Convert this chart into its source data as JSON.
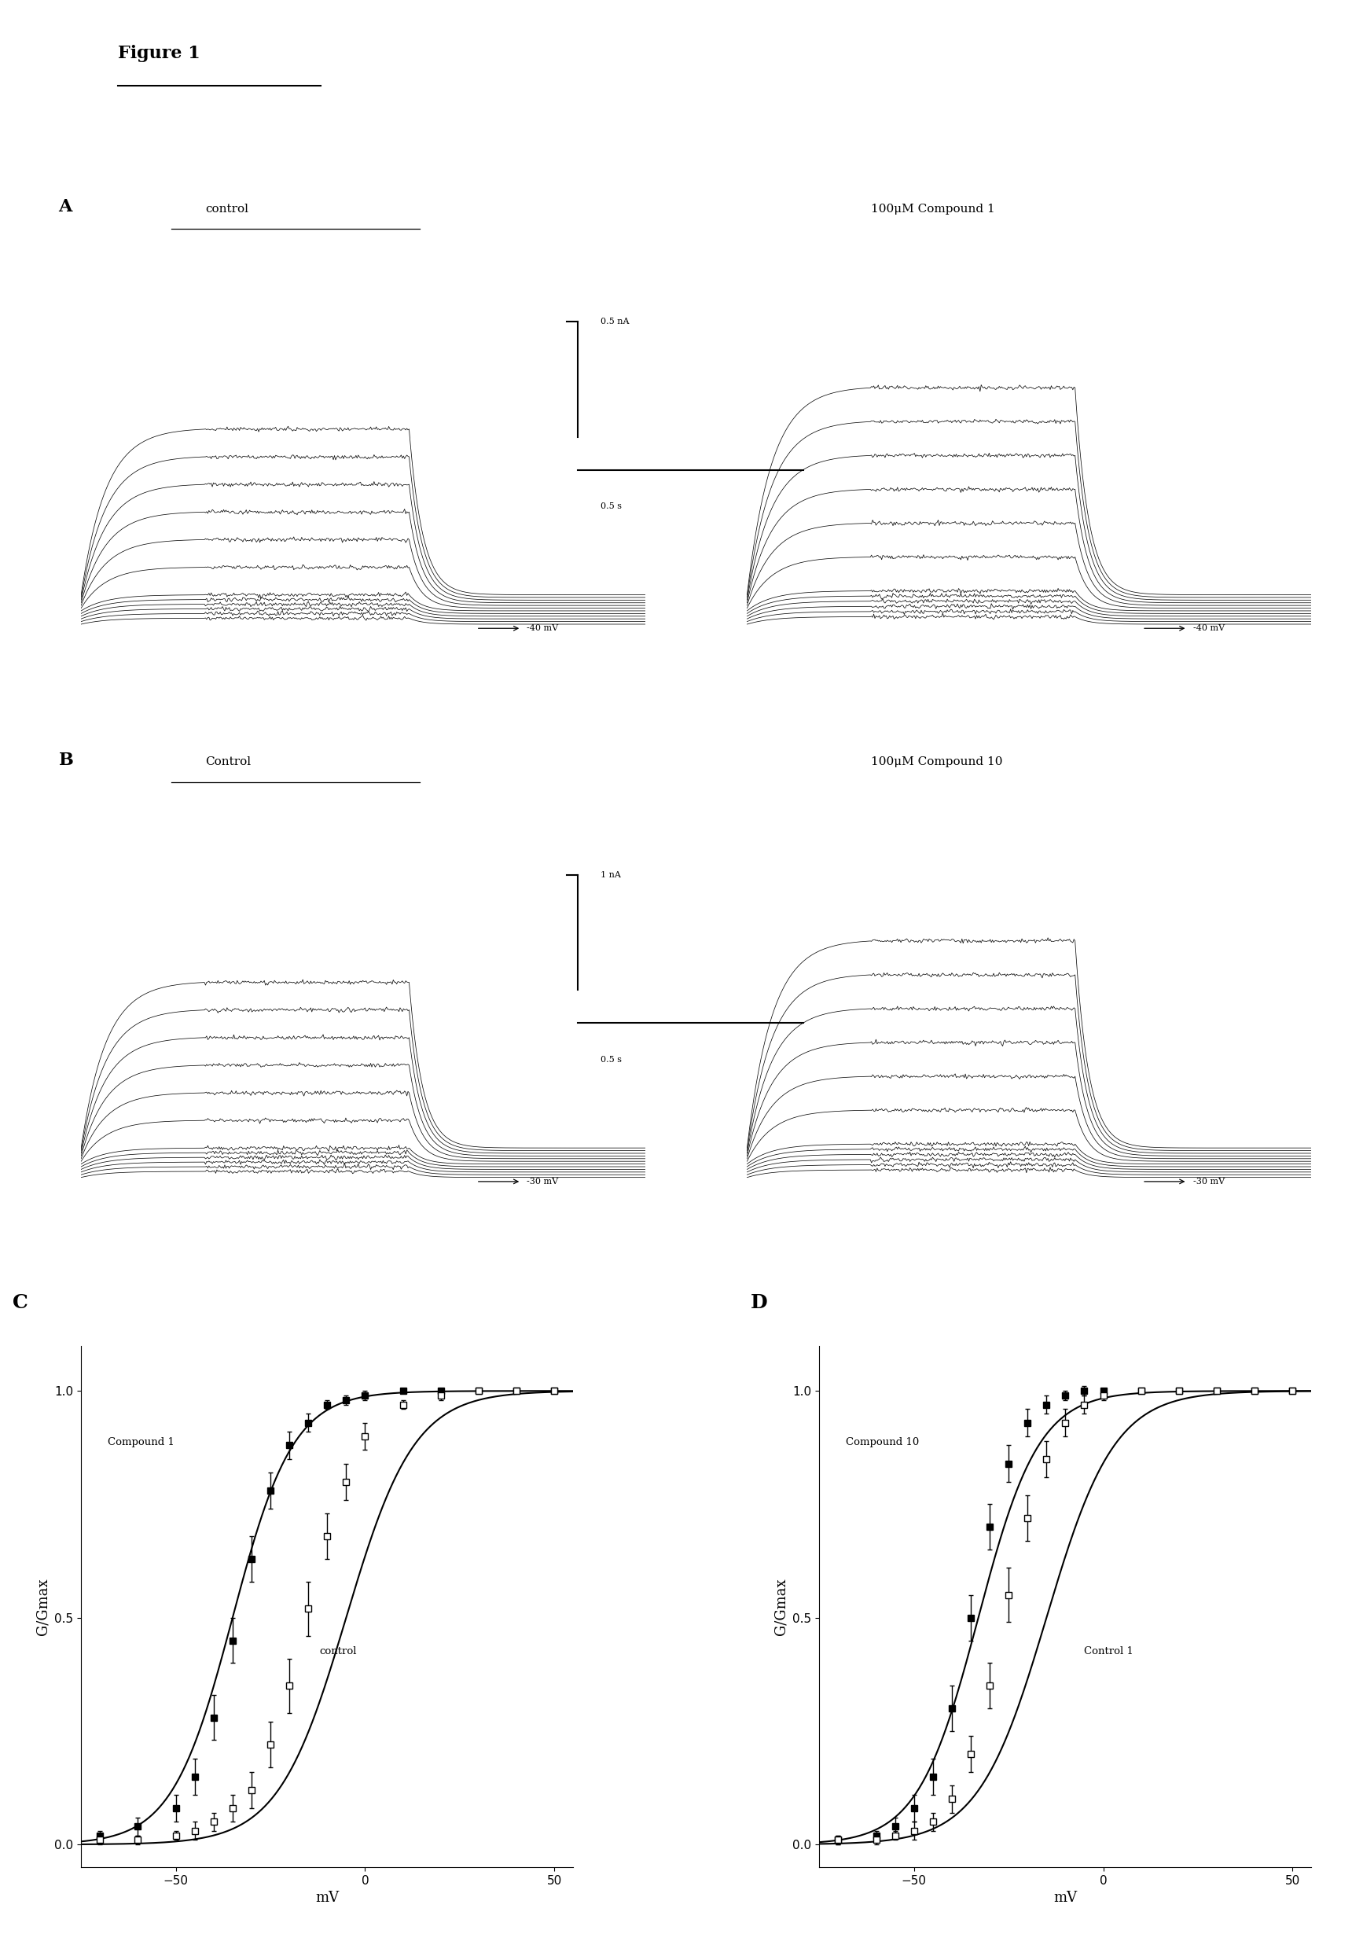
{
  "figure_title": "Figure 1",
  "panel_A_label": "A",
  "panel_B_label": "B",
  "panel_C_label": "C",
  "panel_D_label": "D",
  "panel_A_left_title": "control",
  "panel_A_right_title": "100μM Compound 1",
  "panel_B_left_title": "Control",
  "panel_B_right_title": "100μM Compound 10",
  "scale_bar_A_current": "0.5 nA",
  "scale_bar_A_time": "0.5 s",
  "scale_bar_B_current": "1 nA",
  "scale_bar_B_time": "0.5 s",
  "arrow_label_A": "-40 mV",
  "arrow_label_B": "-30 mV",
  "n_traces": 12,
  "trace_color": "#000000",
  "bg_color": "#ffffff",
  "panel_C_ylabel": "G/Gmax",
  "panel_D_ylabel": "G/Gmax",
  "panel_C_xlabel": "mV",
  "panel_D_xlabel": "mV",
  "xlim": [
    -75,
    55
  ],
  "ylim": [
    -0.05,
    1.1
  ],
  "xticks": [
    -50,
    0,
    50
  ],
  "yticks": [
    0,
    0.5,
    1
  ],
  "compound1_label": "Compound 1",
  "control_C_label": "control",
  "compound10_label": "Compound 10",
  "control_D_label": "Control 1",
  "compound1_x": [
    -70,
    -60,
    -50,
    -45,
    -40,
    -35,
    -30,
    -25,
    -20,
    -15,
    -10,
    -5,
    0,
    10,
    20,
    30,
    40,
    50
  ],
  "compound1_y": [
    0.02,
    0.04,
    0.08,
    0.15,
    0.28,
    0.45,
    0.63,
    0.78,
    0.88,
    0.93,
    0.97,
    0.98,
    0.99,
    1.0,
    1.0,
    1.0,
    1.0,
    1.0
  ],
  "compound1_err": [
    0.01,
    0.02,
    0.03,
    0.04,
    0.05,
    0.05,
    0.05,
    0.04,
    0.03,
    0.02,
    0.01,
    0.01,
    0.01,
    0.0,
    0.0,
    0.0,
    0.0,
    0.0
  ],
  "control_C_x": [
    -70,
    -60,
    -50,
    -45,
    -40,
    -35,
    -30,
    -25,
    -20,
    -15,
    -10,
    -5,
    0,
    10,
    20,
    30,
    40,
    50
  ],
  "control_C_y": [
    0.01,
    0.01,
    0.02,
    0.03,
    0.05,
    0.08,
    0.12,
    0.22,
    0.35,
    0.52,
    0.68,
    0.8,
    0.9,
    0.97,
    0.99,
    1.0,
    1.0,
    1.0
  ],
  "control_C_err": [
    0.01,
    0.01,
    0.01,
    0.02,
    0.02,
    0.03,
    0.04,
    0.05,
    0.06,
    0.06,
    0.05,
    0.04,
    0.03,
    0.01,
    0.01,
    0.0,
    0.0,
    0.0
  ],
  "compound10_x": [
    -70,
    -60,
    -55,
    -50,
    -45,
    -40,
    -35,
    -30,
    -25,
    -20,
    -15,
    -10,
    -5,
    0,
    10,
    20,
    30,
    40,
    50
  ],
  "compound10_y": [
    0.01,
    0.02,
    0.04,
    0.08,
    0.15,
    0.3,
    0.5,
    0.7,
    0.84,
    0.93,
    0.97,
    0.99,
    1.0,
    1.0,
    1.0,
    1.0,
    1.0,
    1.0,
    1.0
  ],
  "compound10_err": [
    0.01,
    0.01,
    0.02,
    0.03,
    0.04,
    0.05,
    0.05,
    0.05,
    0.04,
    0.03,
    0.02,
    0.01,
    0.01,
    0.0,
    0.0,
    0.0,
    0.0,
    0.0,
    0.0
  ],
  "control_D_x": [
    -70,
    -60,
    -55,
    -50,
    -45,
    -40,
    -35,
    -30,
    -25,
    -20,
    -15,
    -10,
    -5,
    0,
    10,
    20,
    30,
    40,
    50
  ],
  "control_D_y": [
    0.01,
    0.01,
    0.02,
    0.03,
    0.05,
    0.1,
    0.2,
    0.35,
    0.55,
    0.72,
    0.85,
    0.93,
    0.97,
    0.99,
    1.0,
    1.0,
    1.0,
    1.0,
    1.0
  ],
  "control_D_err": [
    0.01,
    0.01,
    0.01,
    0.02,
    0.02,
    0.03,
    0.04,
    0.05,
    0.06,
    0.05,
    0.04,
    0.03,
    0.02,
    0.01,
    0.0,
    0.0,
    0.0,
    0.0,
    0.0
  ],
  "marker_size": 6,
  "line_width": 1.5,
  "font_size_title": 14,
  "font_size_label": 12,
  "font_size_tick": 11,
  "font_size_annotation": 10,
  "font_size_fig_title": 16
}
